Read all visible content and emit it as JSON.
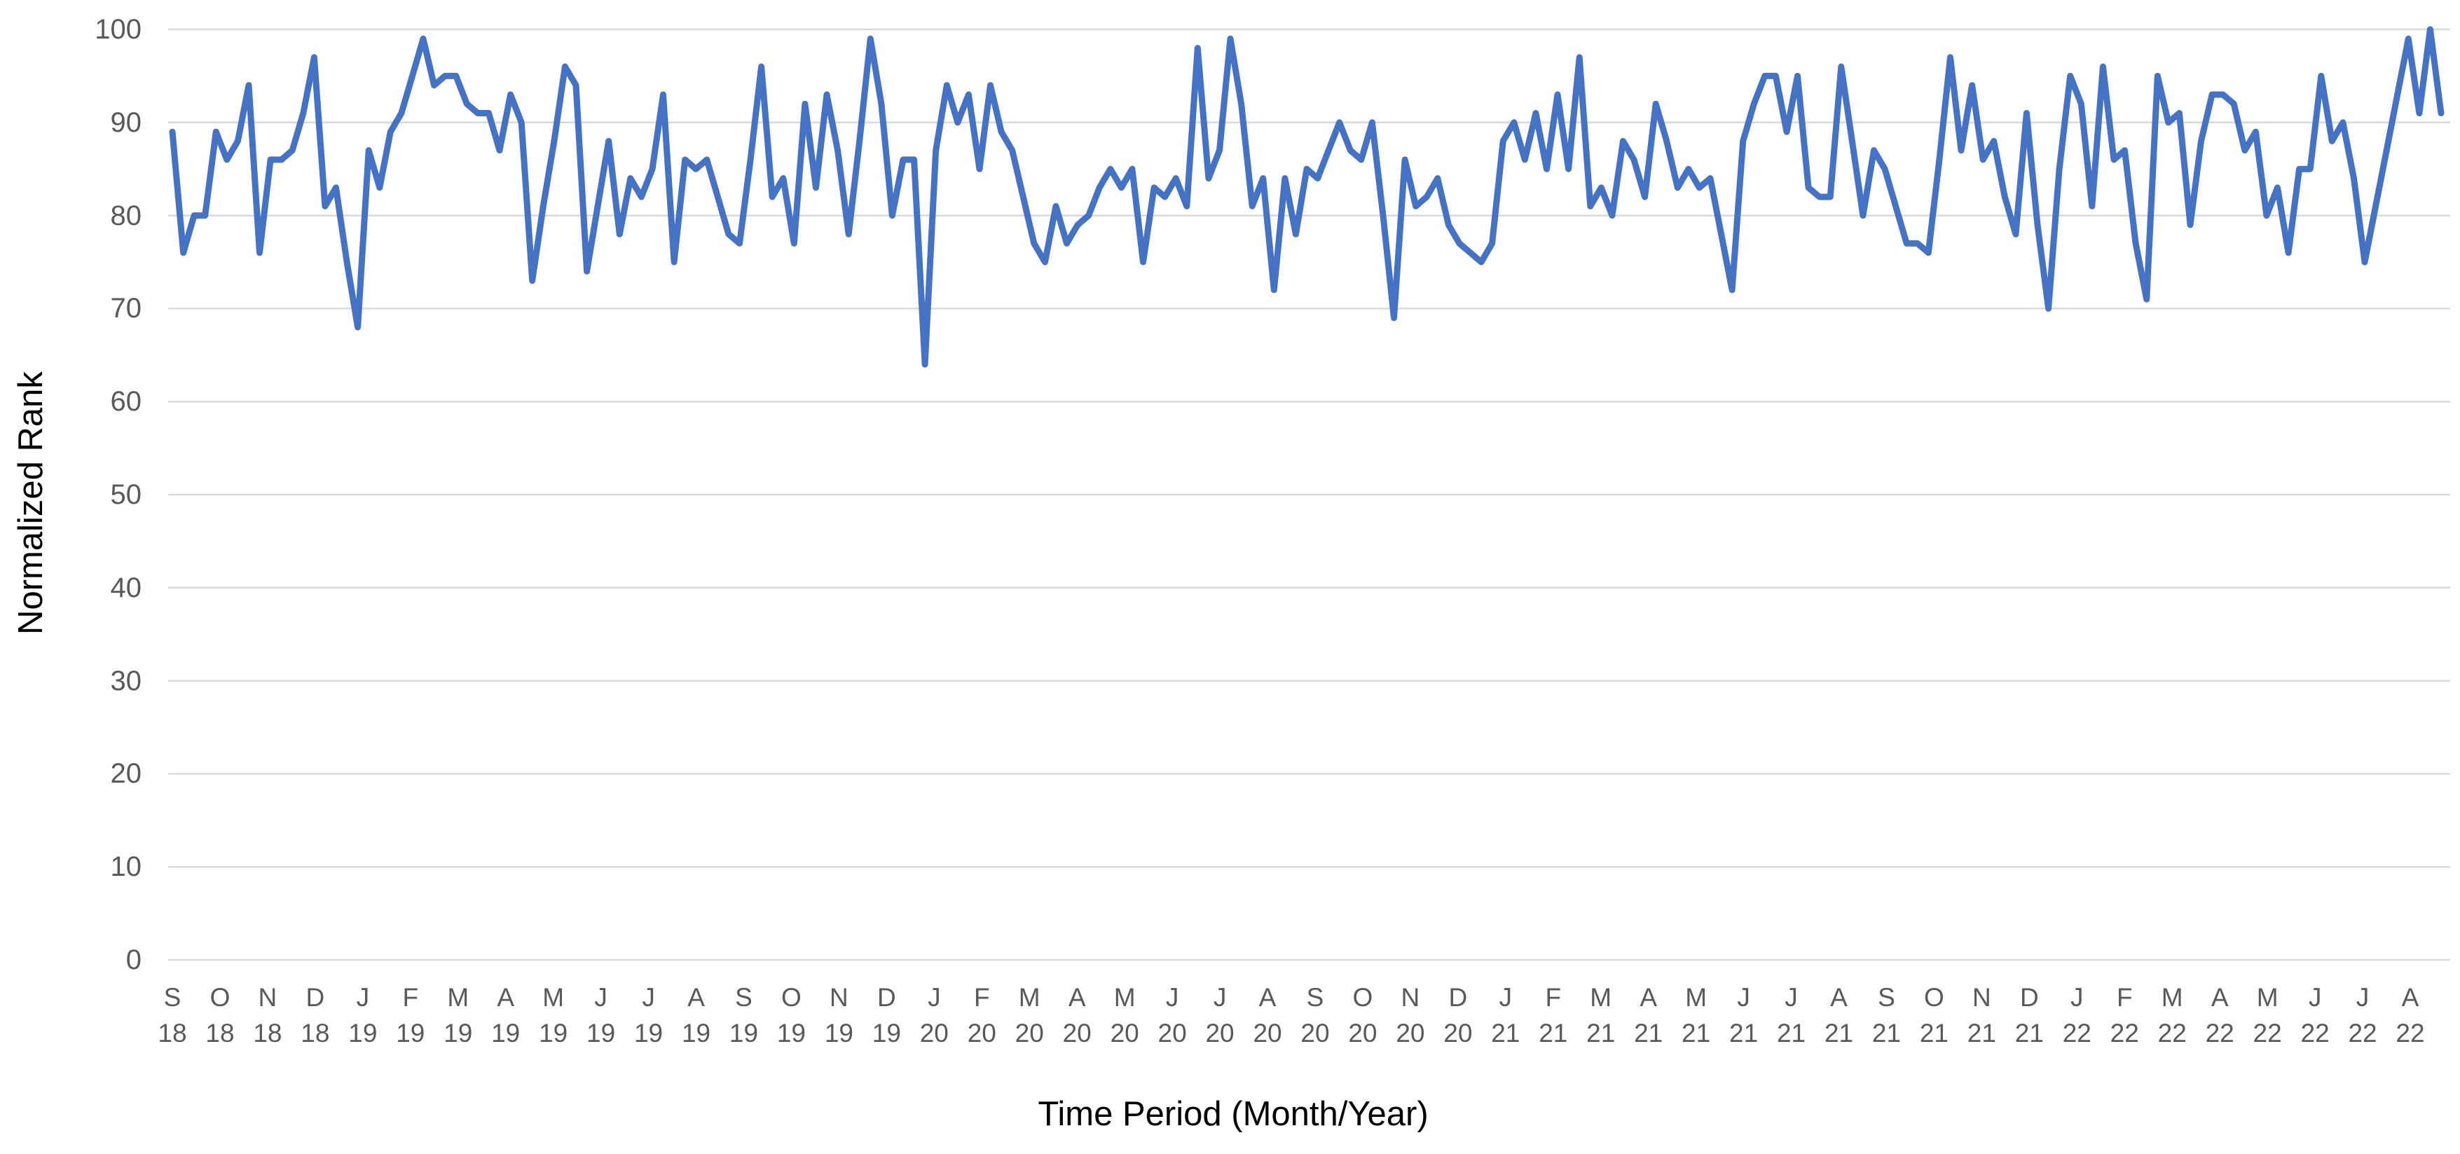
{
  "chart_data": {
    "type": "line",
    "title": "",
    "xlabel": "Time Period (Month/Year)",
    "ylabel": "Normalized Rank",
    "ylim": [
      0,
      100
    ],
    "y_ticks": [
      0,
      10,
      20,
      30,
      40,
      50,
      60,
      70,
      80,
      90,
      100
    ],
    "grid": true,
    "legend": false,
    "gridline_color": "#d9d9d9",
    "tick_label_color": "#595959",
    "axis_title_color": "#000000",
    "x_tick_labels": [
      {
        "m": "S",
        "y": "18"
      },
      {
        "m": "O",
        "y": "18"
      },
      {
        "m": "N",
        "y": "18"
      },
      {
        "m": "D",
        "y": "18"
      },
      {
        "m": "J",
        "y": "19"
      },
      {
        "m": "F",
        "y": "19"
      },
      {
        "m": "M",
        "y": "19"
      },
      {
        "m": "A",
        "y": "19"
      },
      {
        "m": "M",
        "y": "19"
      },
      {
        "m": "J",
        "y": "19"
      },
      {
        "m": "J",
        "y": "19"
      },
      {
        "m": "A",
        "y": "19"
      },
      {
        "m": "S",
        "y": "19"
      },
      {
        "m": "O",
        "y": "19"
      },
      {
        "m": "N",
        "y": "19"
      },
      {
        "m": "D",
        "y": "19"
      },
      {
        "m": "J",
        "y": "20"
      },
      {
        "m": "F",
        "y": "20"
      },
      {
        "m": "M",
        "y": "20"
      },
      {
        "m": "A",
        "y": "20"
      },
      {
        "m": "M",
        "y": "20"
      },
      {
        "m": "J",
        "y": "20"
      },
      {
        "m": "J",
        "y": "20"
      },
      {
        "m": "A",
        "y": "20"
      },
      {
        "m": "S",
        "y": "20"
      },
      {
        "m": "O",
        "y": "20"
      },
      {
        "m": "N",
        "y": "20"
      },
      {
        "m": "D",
        "y": "20"
      },
      {
        "m": "J",
        "y": "21"
      },
      {
        "m": "F",
        "y": "21"
      },
      {
        "m": "M",
        "y": "21"
      },
      {
        "m": "A",
        "y": "21"
      },
      {
        "m": "M",
        "y": "21"
      },
      {
        "m": "J",
        "y": "21"
      },
      {
        "m": "J",
        "y": "21"
      },
      {
        "m": "A",
        "y": "21"
      },
      {
        "m": "S",
        "y": "21"
      },
      {
        "m": "O",
        "y": "21"
      },
      {
        "m": "N",
        "y": "21"
      },
      {
        "m": "D",
        "y": "21"
      },
      {
        "m": "J",
        "y": "22"
      },
      {
        "m": "F",
        "y": "22"
      },
      {
        "m": "M",
        "y": "22"
      },
      {
        "m": "A",
        "y": "22"
      },
      {
        "m": "M",
        "y": "22"
      },
      {
        "m": "J",
        "y": "22"
      },
      {
        "m": "J",
        "y": "22"
      },
      {
        "m": "A",
        "y": "22"
      }
    ],
    "series": [
      {
        "name": "Normalized Rank",
        "color": "#4472C4",
        "frequency": "weekly",
        "values": [
          89,
          76,
          80,
          80,
          89,
          86,
          88,
          94,
          76,
          86,
          86,
          87,
          91,
          97,
          81,
          83,
          75,
          68,
          87,
          83,
          89,
          91,
          95,
          99,
          94,
          95,
          95,
          92,
          91,
          91,
          87,
          93,
          90,
          73,
          81,
          88,
          96,
          94,
          74,
          81,
          88,
          78,
          84,
          82,
          85,
          93,
          75,
          86,
          85,
          86,
          82,
          78,
          77,
          86,
          96,
          82,
          84,
          77,
          92,
          83,
          93,
          87,
          78,
          88,
          99,
          92,
          80,
          86,
          86,
          64,
          87,
          94,
          90,
          93,
          85,
          94,
          89,
          87,
          82,
          77,
          75,
          81,
          77,
          79,
          80,
          83,
          85,
          83,
          85,
          75,
          83,
          82,
          84,
          81,
          98,
          84,
          87,
          99,
          92,
          81,
          84,
          72,
          84,
          78,
          85,
          84,
          87,
          90,
          87,
          86,
          90,
          80,
          69,
          86,
          81,
          82,
          84,
          79,
          77,
          76,
          75,
          77,
          88,
          90,
          86,
          91,
          85,
          93,
          85,
          97,
          81,
          83,
          80,
          88,
          86,
          82,
          92,
          88,
          83,
          85,
          83,
          84,
          78,
          72,
          88,
          92,
          95,
          95,
          89,
          95,
          83,
          82,
          82,
          96,
          88,
          80,
          87,
          85,
          81,
          77,
          77,
          76,
          86,
          97,
          87,
          94,
          86,
          88,
          82,
          78,
          91,
          79,
          70,
          85,
          95,
          92,
          81,
          96,
          86,
          87,
          77,
          71,
          95,
          90,
          91,
          79,
          88,
          93,
          93,
          92,
          87,
          89,
          80,
          83,
          76,
          85,
          85,
          95,
          88,
          90,
          84,
          75,
          81,
          87,
          93,
          99,
          91,
          100,
          91
        ]
      }
    ]
  }
}
